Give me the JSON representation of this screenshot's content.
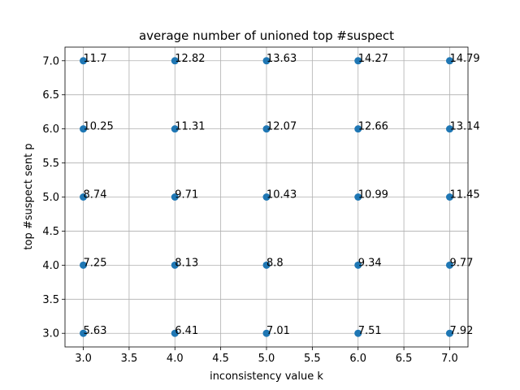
{
  "chart_data": {
    "type": "scatter",
    "title": "average number of unioned top #suspect",
    "xlabel": "inconsistency value k",
    "ylabel": "top #suspect sent p",
    "xlim": [
      2.8,
      7.2
    ],
    "ylim": [
      2.8,
      7.2
    ],
    "xticks": [
      "3.0",
      "3.5",
      "4.0",
      "4.5",
      "5.0",
      "5.5",
      "6.0",
      "6.5",
      "7.0"
    ],
    "yticks": [
      "3.0",
      "3.5",
      "4.0",
      "4.5",
      "5.0",
      "5.5",
      "6.0",
      "6.5",
      "7.0"
    ],
    "grid": true,
    "marker_color": "#1f77b4",
    "points": [
      {
        "x": 3,
        "y": 7,
        "label": "11.7"
      },
      {
        "x": 4,
        "y": 7,
        "label": "12.82"
      },
      {
        "x": 5,
        "y": 7,
        "label": "13.63"
      },
      {
        "x": 6,
        "y": 7,
        "label": "14.27"
      },
      {
        "x": 7,
        "y": 7,
        "label": "14.79"
      },
      {
        "x": 3,
        "y": 6,
        "label": "10.25"
      },
      {
        "x": 4,
        "y": 6,
        "label": "11.31"
      },
      {
        "x": 5,
        "y": 6,
        "label": "12.07"
      },
      {
        "x": 6,
        "y": 6,
        "label": "12.66"
      },
      {
        "x": 7,
        "y": 6,
        "label": "13.14"
      },
      {
        "x": 3,
        "y": 5,
        "label": "8.74"
      },
      {
        "x": 4,
        "y": 5,
        "label": "9.71"
      },
      {
        "x": 5,
        "y": 5,
        "label": "10.43"
      },
      {
        "x": 6,
        "y": 5,
        "label": "10.99"
      },
      {
        "x": 7,
        "y": 5,
        "label": "11.45"
      },
      {
        "x": 3,
        "y": 4,
        "label": "7.25"
      },
      {
        "x": 4,
        "y": 4,
        "label": "8.13"
      },
      {
        "x": 5,
        "y": 4,
        "label": "8.8"
      },
      {
        "x": 6,
        "y": 4,
        "label": "9.34"
      },
      {
        "x": 7,
        "y": 4,
        "label": "9.77"
      },
      {
        "x": 3,
        "y": 3,
        "label": "5.63"
      },
      {
        "x": 4,
        "y": 3,
        "label": "6.41"
      },
      {
        "x": 5,
        "y": 3,
        "label": "7.01"
      },
      {
        "x": 6,
        "y": 3,
        "label": "7.51"
      },
      {
        "x": 7,
        "y": 3,
        "label": "7.92"
      }
    ]
  }
}
